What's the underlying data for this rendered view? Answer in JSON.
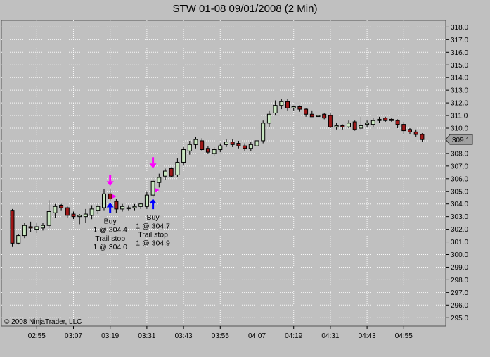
{
  "title": "STW 01-08  09/01/2008  (2 Min)",
  "copyright": "© 2008 NinjaTrader, LLC",
  "colors": {
    "background": "#c0c0c0",
    "up_candle": "#c8e6c0",
    "down_candle": "#a01818",
    "buy_arrow": "#0000ff",
    "exit_arrow": "#ff00ff",
    "trail_marker": "#ff00ff"
  },
  "chart_data": {
    "type": "candlestick",
    "title": "STW 01-08  09/01/2008  (2 Min)",
    "ylim": [
      294.5,
      318.7
    ],
    "y_ticks": [
      "318.0",
      "317.0",
      "316.0",
      "315.0",
      "314.0",
      "313.0",
      "312.0",
      "311.0",
      "310.0",
      "309.0",
      "308.0",
      "307.0",
      "306.0",
      "305.0",
      "304.0",
      "303.0",
      "302.0",
      "301.0",
      "300.0",
      "299.0",
      "298.0",
      "297.0",
      "296.0",
      "295.0"
    ],
    "x_ticks": [
      "02:55",
      "03:07",
      "03:19",
      "03:31",
      "03:43",
      "03:55",
      "04:07",
      "04:19",
      "04:31",
      "04:43",
      "04:55"
    ],
    "last_price": "309.1",
    "grid": true,
    "candles": [
      {
        "o": 303.5,
        "h": 303.6,
        "l": 300.6,
        "c": 300.9
      },
      {
        "o": 300.9,
        "h": 301.6,
        "l": 300.8,
        "c": 301.5
      },
      {
        "o": 301.5,
        "h": 302.5,
        "l": 301.3,
        "c": 302.3
      },
      {
        "o": 302.2,
        "h": 302.6,
        "l": 301.8,
        "c": 302.1
      },
      {
        "o": 302.0,
        "h": 302.5,
        "l": 301.7,
        "c": 302.2
      },
      {
        "o": 302.1,
        "h": 302.5,
        "l": 301.9,
        "c": 302.3
      },
      {
        "o": 302.3,
        "h": 304.3,
        "l": 302.1,
        "c": 303.4
      },
      {
        "o": 303.3,
        "h": 304.0,
        "l": 302.9,
        "c": 303.8
      },
      {
        "o": 303.9,
        "h": 304.0,
        "l": 303.5,
        "c": 303.7
      },
      {
        "o": 303.7,
        "h": 303.8,
        "l": 302.9,
        "c": 303.1
      },
      {
        "o": 303.2,
        "h": 303.4,
        "l": 302.8,
        "c": 303.0
      },
      {
        "o": 303.0,
        "h": 303.2,
        "l": 302.4,
        "c": 303.1
      },
      {
        "o": 303.0,
        "h": 303.6,
        "l": 302.5,
        "c": 303.2
      },
      {
        "o": 303.1,
        "h": 303.9,
        "l": 302.8,
        "c": 303.6
      },
      {
        "o": 303.5,
        "h": 304.0,
        "l": 303.2,
        "c": 303.8
      },
      {
        "o": 303.7,
        "h": 305.2,
        "l": 303.5,
        "c": 304.8
      },
      {
        "o": 304.8,
        "h": 305.2,
        "l": 304.2,
        "c": 304.4
      },
      {
        "o": 304.2,
        "h": 304.4,
        "l": 303.3,
        "c": 303.6
      },
      {
        "o": 303.6,
        "h": 304.0,
        "l": 303.4,
        "c": 303.8
      },
      {
        "o": 303.7,
        "h": 303.9,
        "l": 303.5,
        "c": 303.7
      },
      {
        "o": 303.7,
        "h": 304.0,
        "l": 303.5,
        "c": 303.8
      },
      {
        "o": 303.8,
        "h": 304.1,
        "l": 303.6,
        "c": 304.0
      },
      {
        "o": 303.8,
        "h": 305.0,
        "l": 303.6,
        "c": 304.7
      },
      {
        "o": 304.7,
        "h": 306.1,
        "l": 304.5,
        "c": 305.8
      },
      {
        "o": 305.7,
        "h": 306.4,
        "l": 305.3,
        "c": 306.1
      },
      {
        "o": 306.2,
        "h": 306.8,
        "l": 305.9,
        "c": 306.6
      },
      {
        "o": 306.8,
        "h": 306.9,
        "l": 306.1,
        "c": 306.2
      },
      {
        "o": 306.3,
        "h": 307.6,
        "l": 306.1,
        "c": 307.3
      },
      {
        "o": 307.3,
        "h": 308.5,
        "l": 307.1,
        "c": 308.3
      },
      {
        "o": 308.2,
        "h": 309.0,
        "l": 307.9,
        "c": 308.7
      },
      {
        "o": 308.7,
        "h": 309.3,
        "l": 308.4,
        "c": 309.1
      },
      {
        "o": 309.0,
        "h": 309.2,
        "l": 308.2,
        "c": 308.3
      },
      {
        "o": 308.4,
        "h": 308.6,
        "l": 308.0,
        "c": 308.1
      },
      {
        "o": 308.0,
        "h": 308.5,
        "l": 307.8,
        "c": 308.3
      },
      {
        "o": 308.3,
        "h": 308.8,
        "l": 308.1,
        "c": 308.6
      },
      {
        "o": 308.7,
        "h": 309.1,
        "l": 308.5,
        "c": 308.9
      },
      {
        "o": 308.9,
        "h": 309.1,
        "l": 308.5,
        "c": 308.7
      },
      {
        "o": 308.8,
        "h": 309.0,
        "l": 308.4,
        "c": 308.6
      },
      {
        "o": 308.6,
        "h": 308.8,
        "l": 308.2,
        "c": 308.4
      },
      {
        "o": 308.4,
        "h": 308.9,
        "l": 308.2,
        "c": 308.7
      },
      {
        "o": 308.6,
        "h": 309.2,
        "l": 308.4,
        "c": 309.0
      },
      {
        "o": 309.0,
        "h": 310.6,
        "l": 308.8,
        "c": 310.4
      },
      {
        "o": 310.4,
        "h": 311.4,
        "l": 310.1,
        "c": 311.1
      },
      {
        "o": 311.2,
        "h": 312.2,
        "l": 311.0,
        "c": 311.8
      },
      {
        "o": 311.8,
        "h": 312.3,
        "l": 311.5,
        "c": 312.1
      },
      {
        "o": 312.1,
        "h": 312.3,
        "l": 311.4,
        "c": 311.6
      },
      {
        "o": 311.6,
        "h": 311.8,
        "l": 311.4,
        "c": 311.7
      },
      {
        "o": 311.7,
        "h": 311.8,
        "l": 311.3,
        "c": 311.5
      },
      {
        "o": 311.5,
        "h": 311.6,
        "l": 310.9,
        "c": 311.1
      },
      {
        "o": 311.1,
        "h": 311.4,
        "l": 310.9,
        "c": 310.9
      },
      {
        "o": 311.0,
        "h": 311.3,
        "l": 310.8,
        "c": 311.0
      },
      {
        "o": 311.1,
        "h": 311.2,
        "l": 310.7,
        "c": 310.8
      },
      {
        "o": 311.0,
        "h": 311.2,
        "l": 310.0,
        "c": 310.1
      },
      {
        "o": 310.1,
        "h": 310.4,
        "l": 309.9,
        "c": 310.2
      },
      {
        "o": 310.2,
        "h": 310.3,
        "l": 309.9,
        "c": 310.1
      },
      {
        "o": 310.1,
        "h": 310.6,
        "l": 310.0,
        "c": 310.4
      },
      {
        "o": 310.5,
        "h": 310.6,
        "l": 309.8,
        "c": 309.9
      },
      {
        "o": 310.0,
        "h": 310.9,
        "l": 309.9,
        "c": 310.2
      },
      {
        "o": 310.3,
        "h": 310.6,
        "l": 310.1,
        "c": 310.4
      },
      {
        "o": 310.3,
        "h": 310.8,
        "l": 310.1,
        "c": 310.6
      },
      {
        "o": 310.6,
        "h": 310.9,
        "l": 310.4,
        "c": 310.7
      },
      {
        "o": 310.8,
        "h": 310.9,
        "l": 310.5,
        "c": 310.6
      },
      {
        "o": 310.7,
        "h": 310.8,
        "l": 310.5,
        "c": 310.6
      },
      {
        "o": 310.6,
        "h": 310.7,
        "l": 310.0,
        "c": 310.3
      },
      {
        "o": 310.3,
        "h": 310.5,
        "l": 309.5,
        "c": 309.8
      },
      {
        "o": 309.9,
        "h": 310.0,
        "l": 309.5,
        "c": 309.7
      },
      {
        "o": 309.7,
        "h": 309.9,
        "l": 309.3,
        "c": 309.5
      },
      {
        "o": 309.5,
        "h": 309.6,
        "l": 308.9,
        "c": 309.1
      }
    ],
    "annotations": [
      {
        "bar": 16,
        "buy_price": 304.4,
        "trail_marker": 304.6,
        "exit_price": 305.8,
        "lines": [
          "Buy",
          "1 @ 304.4",
          "Trail stop",
          "1 @ 304.0"
        ]
      },
      {
        "bar": 23,
        "buy_price": 304.7,
        "trail_marker": 305.1,
        "exit_price": 307.2,
        "lines": [
          "Buy",
          "1 @ 304.7",
          "Trail stop",
          "1 @ 304.9"
        ]
      }
    ]
  }
}
